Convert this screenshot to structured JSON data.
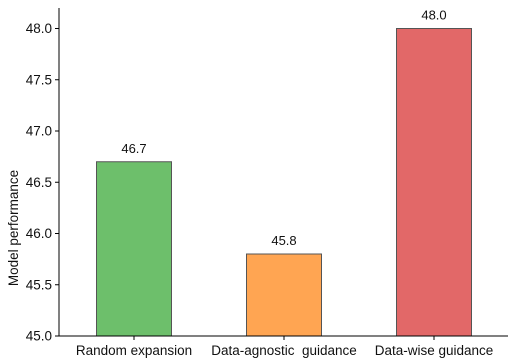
{
  "chart_data": {
    "type": "bar",
    "categories": [
      "Random expansion",
      "Data-agnostic  guidance",
      "Data-wise guidance"
    ],
    "values": [
      46.7,
      45.8,
      48.0
    ],
    "data_labels": [
      "46.7",
      "45.8",
      "48.0"
    ],
    "colors": [
      "#6dbf6b",
      "#ffa552",
      "#e26868"
    ],
    "title": "",
    "xlabel": "",
    "ylabel": "Model performance",
    "ylim": [
      45.0,
      48.2
    ],
    "yticks": [
      45.0,
      45.5,
      46.0,
      46.5,
      47.0,
      47.5,
      48.0
    ],
    "ytick_labels": [
      "45.0",
      "45.5",
      "46.0",
      "46.5",
      "47.0",
      "47.5",
      "48.0"
    ],
    "grid": false,
    "legend": "none"
  }
}
